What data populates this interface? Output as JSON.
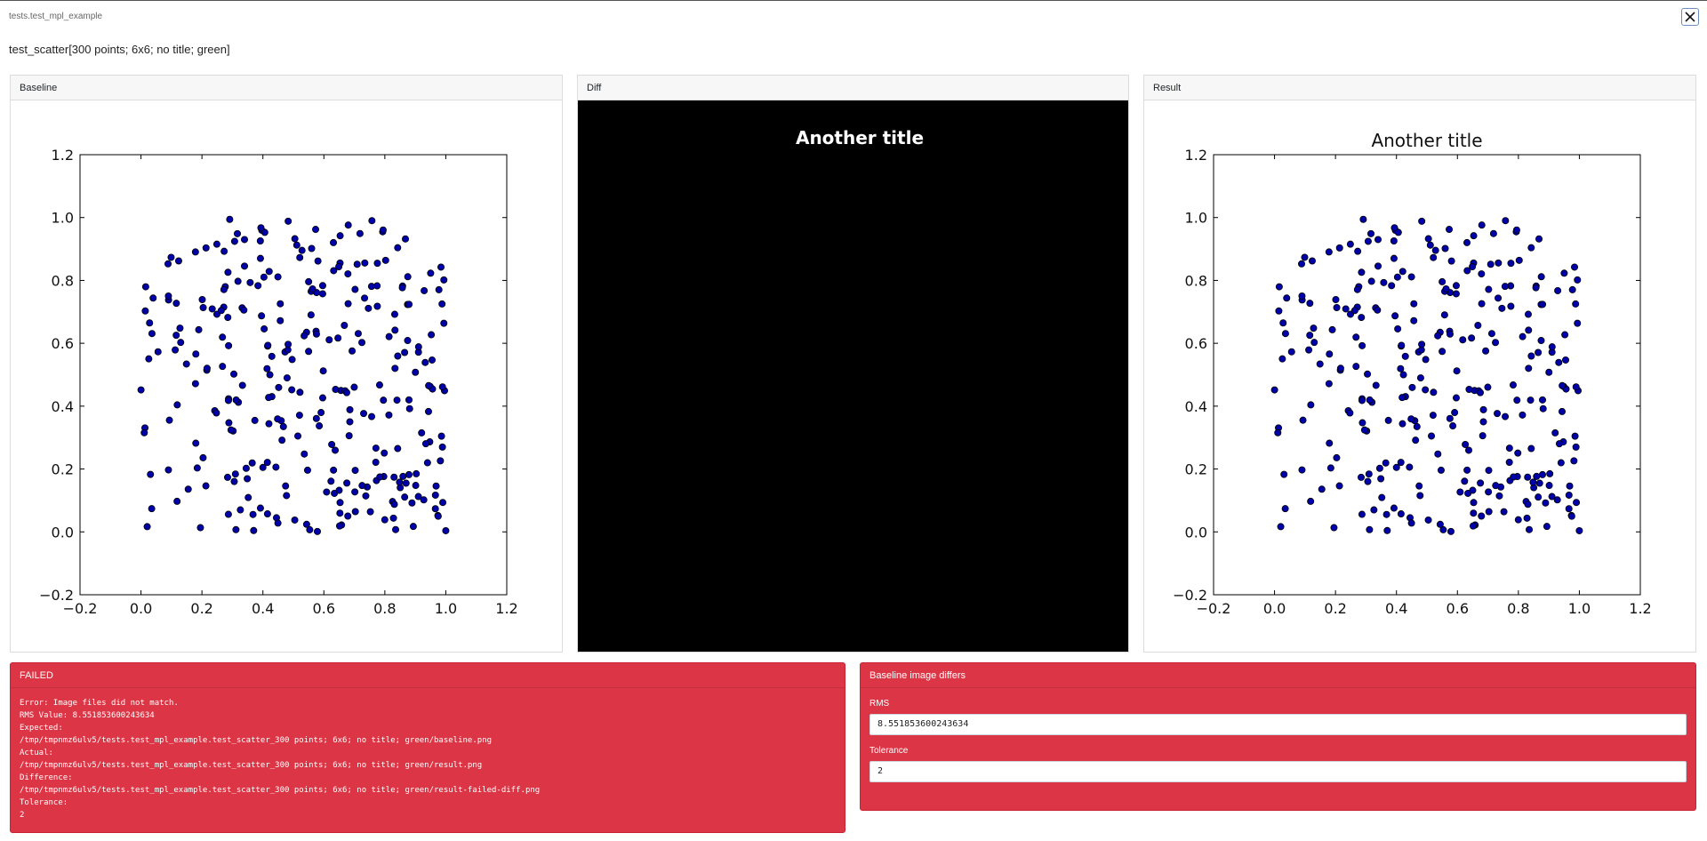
{
  "header": {
    "module": "tests.test_mpl_example",
    "test_name": "test_scatter[300 points; 6x6; no title; green]",
    "close_icon": "close-icon"
  },
  "panels": {
    "baseline_label": "Baseline",
    "diff_label": "Diff",
    "result_label": "Result"
  },
  "diff_image": {
    "title": "Another title",
    "background": "#000000"
  },
  "chart_data": [
    {
      "panel": "Baseline",
      "type": "scatter",
      "title": "",
      "xlim": [
        -0.2,
        1.2
      ],
      "ylim": [
        -0.2,
        1.2
      ],
      "xticks": [
        "−0.2",
        "0.0",
        "0.2",
        "0.4",
        "0.6",
        "0.8",
        "1.0",
        "1.2"
      ],
      "yticks": [
        "1.2",
        "1.0",
        "0.8",
        "0.6",
        "0.4",
        "0.2",
        "0.0",
        "−0.2"
      ],
      "marker_color": "#0000aa",
      "num_points": 300,
      "grid": false
    },
    {
      "panel": "Result",
      "type": "scatter",
      "title": "Another title",
      "xlim": [
        -0.2,
        1.2
      ],
      "ylim": [
        -0.2,
        1.2
      ],
      "xticks": [
        "−0.2",
        "0.0",
        "0.2",
        "0.4",
        "0.6",
        "0.8",
        "1.0",
        "1.2"
      ],
      "yticks": [
        "1.2",
        "1.0",
        "0.8",
        "0.6",
        "0.4",
        "0.2",
        "0.0",
        "−0.2"
      ],
      "marker_color": "#0000aa",
      "num_points": 300,
      "grid": false
    }
  ],
  "failed": {
    "title": "FAILED",
    "log": [
      "Error: Image files did not match.",
      "RMS Value: 8.551853600243634",
      "Expected:",
      "/tmp/tmpnmz6ulv5/tests.test_mpl_example.test_scatter_300 points; 6x6; no title; green/baseline.png",
      "Actual:",
      "/tmp/tmpnmz6ulv5/tests.test_mpl_example.test_scatter_300 points; 6x6; no title; green/result.png",
      "Difference:",
      "/tmp/tmpnmz6ulv5/tests.test_mpl_example.test_scatter_300 points; 6x6; no title; green/result-failed-diff.png",
      "Tolerance:",
      "2"
    ]
  },
  "differs": {
    "title": "Baseline image differs",
    "rms_label": "RMS",
    "rms_value": "8.551853600243634",
    "tolerance_label": "Tolerance",
    "tolerance_value": "2"
  },
  "colors": {
    "danger": "#dc3545",
    "marker": "#0000aa"
  }
}
